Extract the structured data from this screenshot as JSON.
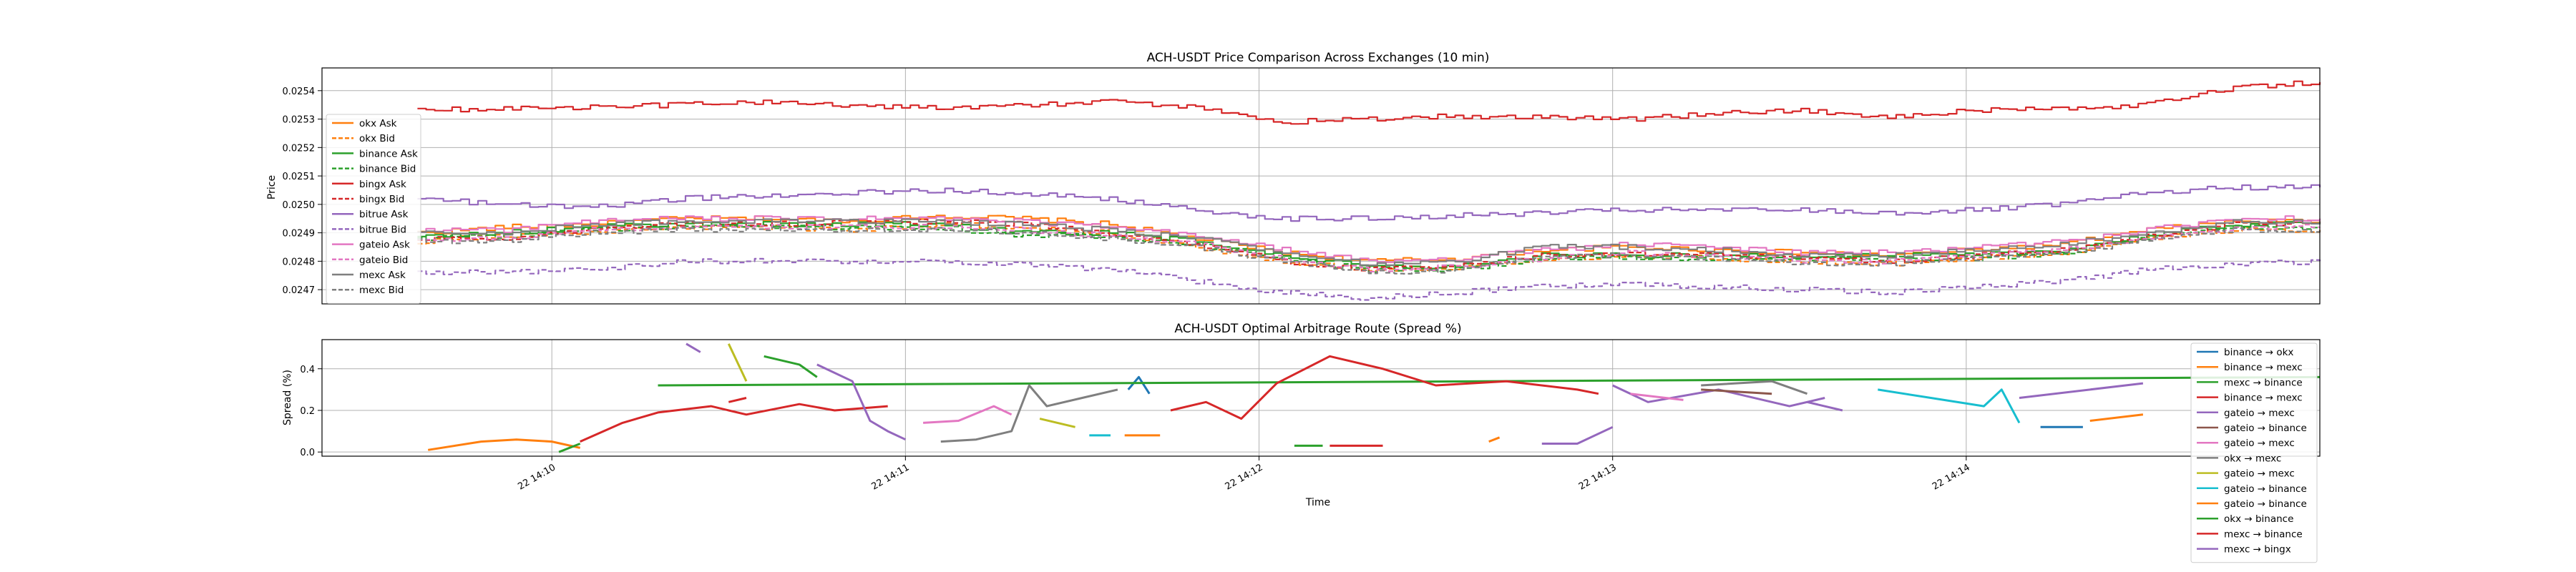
{
  "chart_data": [
    {
      "type": "line",
      "title": "ACH-USDT Price Comparison Across Exchanges (10 min)",
      "xlabel": "",
      "ylabel": "Price",
      "ylim": [
        0.02465,
        0.02548
      ],
      "yticks": [
        "0.0247",
        "0.0248",
        "0.0249",
        "0.0250",
        "0.0251",
        "0.0252",
        "0.0253",
        "0.0254"
      ],
      "xlim_minutes": [
        -0.65,
        5.0
      ],
      "grid": true,
      "legend_position": "lower-left",
      "series": [
        {
          "name": "okx Ask",
          "color": "#ff7f0e",
          "dash": false,
          "values": [
            0.0249,
            0.02492,
            0.02493,
            0.02495,
            0.02495,
            0.02494,
            0.02496,
            0.02495,
            0.02493,
            0.02488,
            0.02483,
            0.0248,
            0.02481,
            0.02484,
            0.02485,
            0.02484,
            0.02483,
            0.02482,
            0.02484,
            0.02486,
            0.02491,
            0.02494,
            0.02494
          ]
        },
        {
          "name": "okx Bid",
          "color": "#ff7f0e",
          "dash": true,
          "values": [
            0.02487,
            0.02489,
            0.0249,
            0.02492,
            0.02492,
            0.02491,
            0.02493,
            0.02492,
            0.0249,
            0.02485,
            0.0248,
            0.02477,
            0.02478,
            0.02481,
            0.02482,
            0.02481,
            0.0248,
            0.02479,
            0.02481,
            0.02483,
            0.02488,
            0.02491,
            0.02491
          ]
        },
        {
          "name": "binance Ask",
          "color": "#2ca02c",
          "dash": false,
          "values": [
            0.02489,
            0.0249,
            0.02492,
            0.02493,
            0.02493,
            0.02493,
            0.02493,
            0.0249,
            0.0249,
            0.02487,
            0.02482,
            0.02478,
            0.02478,
            0.02482,
            0.02482,
            0.02482,
            0.02482,
            0.02482,
            0.02482,
            0.02484,
            0.02489,
            0.02493,
            0.02493
          ]
        },
        {
          "name": "binance Bid",
          "color": "#2ca02c",
          "dash": true,
          "values": [
            0.02488,
            0.02489,
            0.02491,
            0.02492,
            0.02492,
            0.02492,
            0.02492,
            0.02489,
            0.02489,
            0.02486,
            0.02481,
            0.02477,
            0.02477,
            0.02481,
            0.02481,
            0.02481,
            0.02481,
            0.02481,
            0.02481,
            0.02483,
            0.02488,
            0.02492,
            0.02492
          ]
        },
        {
          "name": "bingx Ask",
          "color": "#d62728",
          "dash": false,
          "values": [
            0.02533,
            0.02534,
            0.02534,
            0.02535,
            0.02536,
            0.02535,
            0.02534,
            0.02535,
            0.02536,
            0.02534,
            0.02529,
            0.0253,
            0.02531,
            0.02531,
            0.0253,
            0.02532,
            0.02533,
            0.02531,
            0.02533,
            0.02534,
            0.02535,
            0.02541,
            0.02543
          ]
        },
        {
          "name": "bingx Bid",
          "color": "#d62728",
          "dash": true,
          "values": [
            0.02488,
            0.02488,
            0.02491,
            0.02493,
            0.02493,
            0.02494,
            0.02494,
            0.02493,
            0.0249,
            0.02486,
            0.0248,
            0.02477,
            0.02479,
            0.02482,
            0.02483,
            0.02482,
            0.02481,
            0.0248,
            0.02482,
            0.02484,
            0.02489,
            0.02493,
            0.02494
          ]
        },
        {
          "name": "bitrue Ask",
          "color": "#9467bd",
          "dash": false,
          "values": [
            0.02502,
            0.025,
            0.02499,
            0.02502,
            0.02503,
            0.02504,
            0.02505,
            0.02504,
            0.02502,
            0.02498,
            0.02495,
            0.02495,
            0.02496,
            0.02497,
            0.02498,
            0.02498,
            0.02498,
            0.02497,
            0.02498,
            0.025,
            0.02504,
            0.02506,
            0.02506
          ]
        },
        {
          "name": "bitrue Bid",
          "color": "#9467bd",
          "dash": true,
          "values": [
            0.02476,
            0.02476,
            0.02477,
            0.0248,
            0.0248,
            0.0248,
            0.0248,
            0.02479,
            0.02477,
            0.02473,
            0.02469,
            0.02467,
            0.02469,
            0.02471,
            0.02472,
            0.02471,
            0.0247,
            0.02469,
            0.02471,
            0.02473,
            0.02477,
            0.02479,
            0.0248
          ]
        },
        {
          "name": "gateio Ask",
          "color": "#e377c2",
          "dash": false,
          "values": [
            0.02491,
            0.02491,
            0.02494,
            0.02495,
            0.02495,
            0.02495,
            0.02495,
            0.02494,
            0.02492,
            0.02489,
            0.02484,
            0.0248,
            0.02481,
            0.02484,
            0.02486,
            0.02485,
            0.02483,
            0.02483,
            0.02485,
            0.02487,
            0.02491,
            0.02495,
            0.02495
          ]
        },
        {
          "name": "gateio Bid",
          "color": "#e377c2",
          "dash": true,
          "values": [
            0.02488,
            0.02488,
            0.02491,
            0.02492,
            0.02492,
            0.02492,
            0.02492,
            0.02491,
            0.02489,
            0.02486,
            0.02481,
            0.02477,
            0.02478,
            0.02481,
            0.02483,
            0.02482,
            0.0248,
            0.0248,
            0.02482,
            0.02484,
            0.02488,
            0.02492,
            0.02492
          ]
        },
        {
          "name": "mexc Ask",
          "color": "#7f7f7f",
          "dash": false,
          "values": [
            0.0249,
            0.0249,
            0.02493,
            0.02494,
            0.02494,
            0.02494,
            0.02494,
            0.02493,
            0.02491,
            0.02488,
            0.02483,
            0.02479,
            0.0248,
            0.02485,
            0.02485,
            0.02484,
            0.02482,
            0.02482,
            0.02484,
            0.02486,
            0.0249,
            0.02494,
            0.02494
          ]
        },
        {
          "name": "mexc Bid",
          "color": "#7f7f7f",
          "dash": true,
          "values": [
            0.02487,
            0.02487,
            0.0249,
            0.02491,
            0.02491,
            0.02491,
            0.02491,
            0.0249,
            0.02488,
            0.02485,
            0.0248,
            0.02476,
            0.02477,
            0.02482,
            0.02482,
            0.02481,
            0.02479,
            0.02479,
            0.02481,
            0.02483,
            0.02487,
            0.02491,
            0.02491
          ]
        }
      ]
    },
    {
      "type": "line",
      "title": "ACH-USDT Optimal Arbitrage Route (Spread %)",
      "xlabel": "Time",
      "ylabel": "Spread (%)",
      "ylim": [
        -0.02,
        0.54
      ],
      "yticks": [
        "0.0",
        "0.2",
        "0.4"
      ],
      "xticks": [
        "22 14:10",
        "22 14:11",
        "22 14:12",
        "22 14:13",
        "22 14:14"
      ],
      "xlim_minutes": [
        -0.65,
        5.0
      ],
      "grid": true,
      "legend_position": "right",
      "series": [
        {
          "name": "binance → okx",
          "color": "#1f77b4",
          "segments": [
            [
              [
                4.21,
                0.12
              ],
              [
                4.33,
                0.12
              ]
            ],
            [
              [
                1.63,
                0.3
              ],
              [
                1.66,
                0.36
              ],
              [
                1.69,
                0.28
              ]
            ]
          ]
        },
        {
          "name": "binance → mexc",
          "color": "#ff7f0e",
          "segments": [
            [
              [
                -0.35,
                0.01
              ],
              [
                -0.2,
                0.05
              ],
              [
                -0.1,
                0.06
              ],
              [
                0.0,
                0.05
              ],
              [
                0.08,
                0.02
              ]
            ],
            [
              [
                2.65,
                0.05
              ],
              [
                2.68,
                0.07
              ]
            ]
          ]
        },
        {
          "name": "mexc → binance",
          "color": "#2ca02c",
          "segments": [
            [
              [
                0.3,
                0.32
              ],
              [
                5.0,
                0.36
              ]
            ],
            [
              [
                0.6,
                0.46
              ],
              [
                0.7,
                0.42
              ],
              [
                0.75,
                0.36
              ]
            ]
          ]
        },
        {
          "name": "binance → mexc",
          "color": "#d62728",
          "segments": [
            [
              [
                0.08,
                0.05
              ],
              [
                0.2,
                0.14
              ],
              [
                0.3,
                0.19
              ],
              [
                0.45,
                0.22
              ],
              [
                0.55,
                0.18
              ],
              [
                0.7,
                0.23
              ],
              [
                0.8,
                0.2
              ],
              [
                0.95,
                0.22
              ]
            ],
            [
              [
                1.75,
                0.2
              ],
              [
                1.85,
                0.24
              ],
              [
                1.95,
                0.16
              ],
              [
                2.05,
                0.33
              ],
              [
                2.2,
                0.46
              ],
              [
                2.35,
                0.4
              ],
              [
                2.5,
                0.32
              ],
              [
                2.7,
                0.34
              ],
              [
                2.9,
                0.3
              ],
              [
                2.96,
                0.28
              ]
            ],
            [
              [
                2.2,
                0.03
              ],
              [
                2.35,
                0.03
              ]
            ]
          ]
        },
        {
          "name": "gateio → mexc",
          "color": "#9467bd",
          "segments": [
            [
              [
                0.38,
                0.52
              ],
              [
                0.42,
                0.48
              ]
            ],
            [
              [
                0.75,
                0.42
              ],
              [
                0.85,
                0.34
              ],
              [
                0.9,
                0.15
              ],
              [
                0.95,
                0.1
              ],
              [
                1.0,
                0.06
              ]
            ],
            [
              [
                2.8,
                0.04
              ],
              [
                2.9,
                0.04
              ],
              [
                3.0,
                0.12
              ]
            ],
            [
              [
                3.0,
                0.32
              ],
              [
                3.1,
                0.24
              ],
              [
                3.3,
                0.3
              ],
              [
                3.5,
                0.22
              ],
              [
                3.6,
                0.26
              ]
            ],
            [
              [
                4.15,
                0.26
              ],
              [
                4.5,
                0.33
              ]
            ]
          ]
        },
        {
          "name": "gateio → binance",
          "color": "#8c564b",
          "segments": [
            [
              [
                3.25,
                0.3
              ],
              [
                3.45,
                0.28
              ]
            ]
          ]
        },
        {
          "name": "gateio → mexc",
          "color": "#e377c2",
          "segments": [
            [
              [
                1.05,
                0.14
              ],
              [
                1.15,
                0.15
              ],
              [
                1.25,
                0.22
              ],
              [
                1.3,
                0.18
              ]
            ],
            [
              [
                3.05,
                0.28
              ],
              [
                3.2,
                0.25
              ]
            ]
          ]
        },
        {
          "name": "okx → mexc",
          "color": "#7f7f7f",
          "segments": [
            [
              [
                1.1,
                0.05
              ],
              [
                1.2,
                0.06
              ],
              [
                1.3,
                0.1
              ],
              [
                1.35,
                0.32
              ],
              [
                1.4,
                0.22
              ],
              [
                1.5,
                0.26
              ],
              [
                1.6,
                0.3
              ]
            ],
            [
              [
                3.25,
                0.32
              ],
              [
                3.45,
                0.34
              ],
              [
                3.55,
                0.28
              ]
            ]
          ]
        },
        {
          "name": "gateio → mexc",
          "color": "#bcbd22",
          "segments": [
            [
              [
                0.5,
                0.52
              ],
              [
                0.55,
                0.34
              ]
            ],
            [
              [
                1.38,
                0.16
              ],
              [
                1.48,
                0.12
              ]
            ]
          ]
        },
        {
          "name": "gateio → binance",
          "color": "#17becf",
          "segments": [
            [
              [
                1.52,
                0.08
              ],
              [
                1.58,
                0.08
              ]
            ],
            [
              [
                3.75,
                0.3
              ],
              [
                3.9,
                0.26
              ],
              [
                4.05,
                0.22
              ],
              [
                4.1,
                0.3
              ],
              [
                4.15,
                0.14
              ]
            ]
          ]
        },
        {
          "name": "gateio → binance",
          "color": "#ff7f0e",
          "segments": [
            [
              [
                1.62,
                0.08
              ],
              [
                1.72,
                0.08
              ]
            ],
            [
              [
                4.35,
                0.15
              ],
              [
                4.5,
                0.18
              ]
            ]
          ]
        },
        {
          "name": "okx → binance",
          "color": "#2ca02c",
          "segments": [
            [
              [
                0.02,
                0.0
              ],
              [
                0.08,
                0.04
              ]
            ],
            [
              [
                2.1,
                0.03
              ],
              [
                2.18,
                0.03
              ]
            ]
          ]
        },
        {
          "name": "mexc → binance",
          "color": "#d62728",
          "segments": [
            [
              [
                0.5,
                0.24
              ],
              [
                0.55,
                0.26
              ]
            ]
          ]
        },
        {
          "name": "mexc → bingx",
          "color": "#9467bd",
          "segments": [
            [
              [
                3.55,
                0.24
              ],
              [
                3.65,
                0.2
              ]
            ]
          ]
        }
      ]
    }
  ]
}
